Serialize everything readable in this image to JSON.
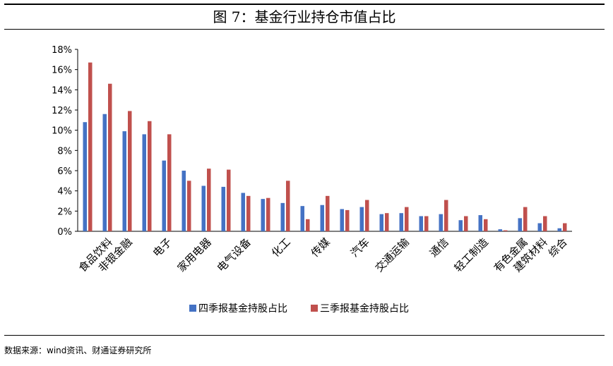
{
  "figure_title": "图 7：基金行业持仓市值占比",
  "source_note": "数据来源：wind资讯、财通证券研究所",
  "chart_data": {
    "type": "bar",
    "title": "图 7：基金行业持仓市值占比",
    "xlabel": "",
    "ylabel": "",
    "ylim": [
      0,
      18
    ],
    "ytick_step": 2,
    "ytick_format": "percent",
    "grid": false,
    "legend_position": "bottom",
    "categories": [
      "食品饮料",
      "非银金融",
      "电子",
      "家用电器",
      "电气设备",
      "化工",
      "传媒",
      "汽车",
      "交通运输",
      "通信",
      "轻工制造",
      "有色金属",
      "建筑材料",
      "综合"
    ],
    "series": [
      {
        "name": "四季报基金持股占比",
        "color": "#4472C4",
        "values": [
          11.6,
          9.9,
          7.0,
          4.5,
          3.8,
          2.8,
          2.6,
          2.4,
          1.8,
          1.7,
          1.6,
          1.3,
          0.8,
          0.3
        ]
      },
      {
        "name": "三季报基金持股占比",
        "color": "#C0504D",
        "values": [
          14.6,
          11.9,
          9.6,
          6.2,
          3.5,
          5.0,
          3.5,
          3.1,
          2.4,
          3.1,
          1.2,
          2.4,
          1.5,
          0.8
        ]
      }
    ],
    "extra_bars": {
      "series_order": [
        "四季报基金持股占比",
        "三季报基金持股占比"
      ],
      "values": [
        [
          10.8,
          16.7
        ],
        [
          9.6,
          10.9
        ],
        [
          6.0,
          5.0
        ],
        [
          4.4,
          6.1
        ],
        [
          3.2,
          3.3
        ],
        [
          2.5,
          1.2
        ],
        [
          2.2,
          2.1
        ],
        [
          1.7,
          1.8
        ],
        [
          1.5,
          1.5
        ],
        [
          1.1,
          1.5
        ],
        [
          0.2,
          0.1
        ]
      ]
    }
  }
}
